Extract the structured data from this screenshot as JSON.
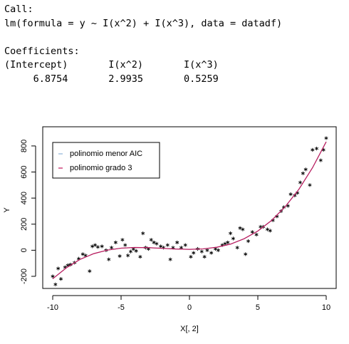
{
  "console": {
    "lines": [
      "Call:",
      "lm(formula = y ~ I(x^2) + I(x^3), data = datadf)",
      "",
      "Coefficients:",
      "(Intercept)       I(x^2)       I(x^3)  ",
      "     6.8754       2.9935       0.5259  "
    ]
  },
  "chart_data": {
    "type": "scatter",
    "xlabel": "X[, 2]",
    "ylabel": "Y",
    "xlim": [
      -10.73,
      10.73
    ],
    "ylim": [
      -293,
      947
    ],
    "xticks": [
      -10,
      -5,
      0,
      5,
      10
    ],
    "yticks": [
      -200,
      0,
      200,
      400,
      600,
      800
    ],
    "point_color": "#000000",
    "legend": "top-left",
    "x": [
      -10,
      -9.8,
      -9.6,
      -9.4,
      -9.1,
      -8.9,
      -8.7,
      -8.4,
      -8.1,
      -7.8,
      -7.6,
      -7.3,
      -7.1,
      -6.9,
      -6.7,
      -6.4,
      -6.1,
      -5.9,
      -5.7,
      -5.4,
      -5.1,
      -4.9,
      -4.7,
      -4.5,
      -4.3,
      -4.1,
      -3.9,
      -3.6,
      -3.4,
      -3.2,
      -3.0,
      -2.8,
      -2.6,
      -2.4,
      -2.1,
      -1.9,
      -1.6,
      -1.4,
      -1.2,
      -0.9,
      -0.6,
      -0.3,
      0.1,
      0.3,
      0.6,
      0.9,
      1.1,
      1.3,
      1.6,
      1.9,
      2.1,
      2.4,
      2.6,
      2.8,
      3.0,
      3.2,
      3.5,
      3.7,
      3.9,
      4.1,
      4.3,
      4.6,
      4.9,
      5.2,
      5.4,
      5.7,
      5.9,
      6.1,
      6.4,
      6.7,
      6.9,
      7.2,
      7.4,
      7.7,
      7.9,
      8.1,
      8.3,
      8.5,
      8.8,
      9.0,
      9.3,
      9.6,
      9.8,
      10
    ],
    "values": [
      -200,
      -262,
      -140,
      -220,
      -130,
      -115,
      -110,
      -95,
      -65,
      -30,
      -40,
      -160,
      30,
      40,
      25,
      30,
      0,
      -70,
      20,
      60,
      -45,
      80,
      40,
      -40,
      -10,
      10,
      -5,
      -50,
      130,
      20,
      10,
      80,
      60,
      50,
      30,
      20,
      40,
      -70,
      20,
      60,
      20,
      40,
      -50,
      -20,
      10,
      -10,
      -50,
      0,
      -20,
      10,
      0,
      40,
      50,
      60,
      130,
      90,
      20,
      170,
      160,
      -30,
      70,
      140,
      120,
      180,
      180,
      160,
      150,
      230,
      260,
      300,
      330,
      340,
      430,
      420,
      440,
      520,
      590,
      620,
      500,
      770,
      780,
      690,
      770,
      860
    ],
    "series": [
      {
        "name": "polinomio menor AIC",
        "color": "#8fb3d9",
        "x": [
          -10,
          -9,
          -8,
          -7,
          -6,
          -5,
          -4,
          -3,
          -2,
          -1,
          0,
          1,
          2,
          3,
          4,
          5,
          6,
          7,
          8,
          9,
          10
        ],
        "values": [
          -219,
          -134.5,
          -70,
          -26,
          1,
          16,
          21,
          19.6,
          14.7,
          9.3,
          6.9,
          10.4,
          23.1,
          47,
          88.3,
          147.4,
          228,
          334,
          467,
          633,
          832
        ]
      },
      {
        "name": "polinomio grado 3",
        "color": "#c0185a",
        "x": [
          -10,
          -9,
          -8,
          -7,
          -6,
          -5,
          -4,
          -3,
          -2,
          -1,
          0,
          1,
          2,
          3,
          4,
          5,
          6,
          7,
          8,
          9,
          10
        ],
        "values": [
          -219,
          -134.5,
          -70,
          -26,
          1,
          16,
          21,
          19.6,
          14.7,
          9.3,
          6.9,
          10.4,
          23.1,
          47,
          88.3,
          147.4,
          228,
          334,
          467,
          633,
          832
        ]
      }
    ]
  }
}
